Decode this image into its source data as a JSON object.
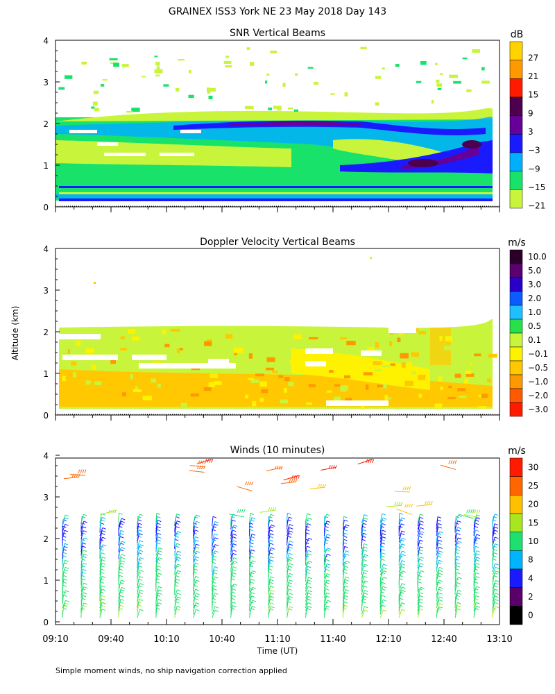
{
  "page": {
    "title": "GRAINEX ISS3 York NE  23 May 2018 Day 143",
    "ylabel": "Altitude (km)",
    "xlabel": "Time (UT)",
    "footnote": "Simple moment winds, no ship navigation correction applied"
  },
  "chart_data": [
    {
      "type": "heatmap",
      "title": "SNR Vertical Beams",
      "colorbar_unit": "dB",
      "colorbar_labels": [
        "27",
        "21",
        "15",
        "9",
        "3",
        "−3",
        "−9",
        "−15",
        "−21"
      ],
      "colorbar_colors": [
        "#ffd200",
        "#ff9900",
        "#ff1a00",
        "#4d004d",
        "#660099",
        "#1a1aff",
        "#00b0ff",
        "#19e26b",
        "#c8f53c"
      ],
      "ylim": [
        0,
        4
      ],
      "yticks": [
        "0",
        "1",
        "2",
        "3",
        "4"
      ],
      "x_range": [
        "09:10",
        "13:10"
      ],
      "layers": [
        {
          "value": -21,
          "top_km": 2.25
        },
        {
          "value": -15,
          "top_km": 2.15
        },
        {
          "value": -9,
          "top_km": 1.95
        },
        {
          "value": -3,
          "top_km": 2.0,
          "note": "thin layer near 1.9-2.1 km, descending band near 1.0-1.3 km after 11:40"
        },
        {
          "value": 9,
          "top_km": 1.5,
          "note": "patch around 12:10-12:50 near 1.0-1.6 km"
        }
      ]
    },
    {
      "type": "heatmap",
      "title": "Doppler Velocity Vertical Beams",
      "colorbar_unit": "m/s",
      "colorbar_labels": [
        "10.0",
        "5.0",
        "3.0",
        "2.0",
        "1.0",
        "0.5",
        "0.1",
        "−0.1",
        "−0.5",
        "−1.0",
        "−2.0",
        "−3.0"
      ],
      "colorbar_colors": [
        "#2b0028",
        "#5a0070",
        "#2a00c8",
        "#0a5cff",
        "#1fc0ff",
        "#29e04a",
        "#c8f53c",
        "#fff200",
        "#ffc800",
        "#ff9900",
        "#ff5a00",
        "#ff1a00"
      ],
      "ylim": [
        0,
        4
      ],
      "yticks": [
        "0",
        "1",
        "2",
        "3",
        "4"
      ],
      "x_range": [
        "09:10",
        "13:10"
      ],
      "layers": [
        {
          "value": 0.1,
          "top_km": 2.2
        },
        {
          "value": -0.5,
          "top_km": 1.1
        }
      ]
    },
    {
      "type": "scatter",
      "title": "Winds (10 minutes)",
      "colorbar_unit": "m/s",
      "colorbar_labels": [
        "30",
        "25",
        "20",
        "15",
        "10",
        "8",
        "4",
        "2",
        "0"
      ],
      "colorbar_colors": [
        "#ff1a00",
        "#ff6600",
        "#ffc000",
        "#a8e620",
        "#1ee06e",
        "#00b4ff",
        "#1a1aff",
        "#5a006a",
        "#000000"
      ],
      "ylim": [
        0,
        4
      ],
      "yticks": [
        "0",
        "1",
        "2",
        "3",
        "4"
      ],
      "xticks": [
        "09:10",
        "09:40",
        "10:10",
        "10:40",
        "11:10",
        "11:40",
        "12:10",
        "12:40",
        "13:10"
      ],
      "profiles_every_minutes": 10,
      "profile_top_km": 2.4,
      "speed_by_altitude": [
        {
          "alt_km": 0.2,
          "speed": 14
        },
        {
          "alt_km": 1.0,
          "speed": 12
        },
        {
          "alt_km": 1.8,
          "speed": 8
        },
        {
          "alt_km": 2.2,
          "speed": 6
        },
        {
          "alt_km": 3.0,
          "speed": 22
        },
        {
          "alt_km": 3.6,
          "speed": 30
        }
      ]
    }
  ]
}
